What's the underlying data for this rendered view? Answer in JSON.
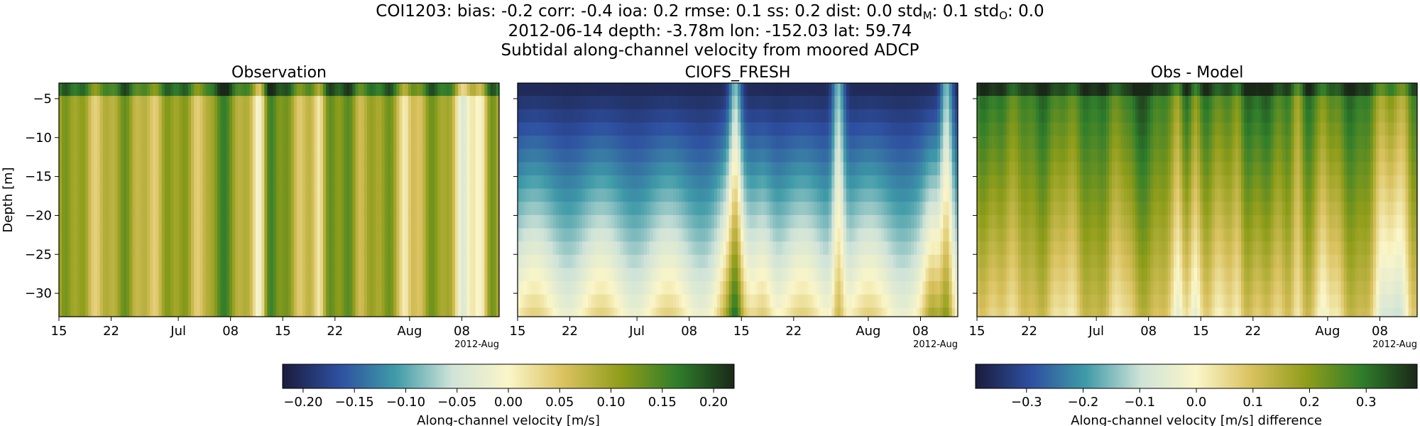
{
  "figure": {
    "title_lines": [
      {
        "parts": [
          {
            "t": "COI1203: bias: -0.2  corr: -0.4  ioa: 0.2  rmse: 0.1  ss: 0.2  dist: 0.0  std"
          },
          {
            "t": "M",
            "sub": true
          },
          {
            "t": ": 0.1  std"
          },
          {
            "t": "O",
            "sub": true
          },
          {
            "t": ": 0.0"
          }
        ]
      },
      {
        "parts": [
          {
            "t": "2012-06-14 depth: -3.78m lon: -152.03 lat: 59.74"
          }
        ]
      },
      {
        "parts": [
          {
            "t": "Subtidal along-channel velocity from moored ADCP"
          }
        ]
      }
    ],
    "colormap": "balance-like diverging (navy → teal → cream → olive → dark green)",
    "colormap_stops": [
      "#1a1c3c",
      "#2e4fa0",
      "#3f9ba8",
      "#cfe3d8",
      "#fbf6c8",
      "#d9c15e",
      "#8f9d1a",
      "#2f7d2b",
      "#1a2818"
    ]
  },
  "chart_data": [
    {
      "type": "heatmap",
      "title": "Observation",
      "ylabel": "Depth [m]",
      "xlabel": "",
      "x_range": [
        "2012-06-15",
        "2012-08-13"
      ],
      "ylim": [
        -33,
        -3
      ],
      "x_ticks": [
        {
          "date": "2012-06-15",
          "label": "15"
        },
        {
          "date": "2012-06-22",
          "label": "22"
        },
        {
          "date": "2012-07-01",
          "label": "Jul"
        },
        {
          "date": "2012-07-08",
          "label": "08"
        },
        {
          "date": "2012-07-15",
          "label": "15"
        },
        {
          "date": "2012-07-22",
          "label": "22"
        },
        {
          "date": "2012-08-01",
          "label": "Aug"
        },
        {
          "date": "2012-08-08",
          "label": "08"
        }
      ],
      "x_offset_label": "2012-Aug",
      "y_ticks": [
        -5,
        -10,
        -15,
        -20,
        -25,
        -30
      ],
      "clim": [
        -0.22,
        0.22
      ],
      "field": {
        "base": 0.08,
        "series": "obs",
        "note": "mostly positive, near-uniform in depth"
      }
    },
    {
      "type": "heatmap",
      "title": "CIOFS_FRESH",
      "ylabel": "",
      "xlabel": "",
      "x_range": [
        "2012-06-15",
        "2012-08-13"
      ],
      "ylim": [
        -33,
        -3
      ],
      "x_ticks": [
        {
          "date": "2012-06-15",
          "label": "15"
        },
        {
          "date": "2012-06-22",
          "label": "22"
        },
        {
          "date": "2012-07-01",
          "label": "Jul"
        },
        {
          "date": "2012-07-08",
          "label": "08"
        },
        {
          "date": "2012-07-15",
          "label": "15"
        },
        {
          "date": "2012-07-22",
          "label": "22"
        },
        {
          "date": "2012-08-01",
          "label": "Aug"
        },
        {
          "date": "2012-08-08",
          "label": "08"
        }
      ],
      "x_offset_label": "2012-Aug",
      "y_ticks": [
        -5,
        -10,
        -15,
        -20,
        -25,
        -30
      ],
      "clim": [
        -0.22,
        0.22
      ],
      "field": {
        "series": "model",
        "note": "strong negative near surface, near zero at depth"
      }
    },
    {
      "type": "heatmap",
      "title": "Obs - Model",
      "ylabel": "",
      "xlabel": "",
      "x_range": [
        "2012-06-15",
        "2012-08-13"
      ],
      "ylim": [
        -33,
        -3
      ],
      "x_ticks": [
        {
          "date": "2012-06-15",
          "label": "15"
        },
        {
          "date": "2012-06-22",
          "label": "22"
        },
        {
          "date": "2012-07-01",
          "label": "Jul"
        },
        {
          "date": "2012-07-08",
          "label": "08"
        },
        {
          "date": "2012-07-15",
          "label": "15"
        },
        {
          "date": "2012-07-22",
          "label": "22"
        },
        {
          "date": "2012-08-01",
          "label": "Aug"
        },
        {
          "date": "2012-08-08",
          "label": "08"
        }
      ],
      "x_offset_label": "2012-Aug",
      "y_ticks": [
        -5,
        -10,
        -15,
        -20,
        -25,
        -30
      ],
      "clim": [
        -0.39,
        0.39
      ],
      "field": {
        "series": "diff",
        "note": "positive, largest near surface"
      }
    }
  ],
  "colorbars": [
    {
      "label": "Along-channel velocity [m/s]",
      "vmin": -0.22,
      "vmax": 0.22,
      "ticks": [
        -0.2,
        -0.15,
        -0.1,
        -0.05,
        0.0,
        0.05,
        0.1,
        0.15,
        0.2
      ],
      "tick_labels": [
        "−0.20",
        "−0.15",
        "−0.10",
        "−0.05",
        "0.00",
        "0.05",
        "0.10",
        "0.15",
        "0.20"
      ]
    },
    {
      "label": "Along-channel velocity [m/s] difference",
      "vmin": -0.39,
      "vmax": 0.39,
      "ticks": [
        -0.3,
        -0.2,
        -0.1,
        0.0,
        0.1,
        0.2,
        0.3
      ],
      "tick_labels": [
        "−0.3",
        "−0.2",
        "−0.1",
        "0.0",
        "0.1",
        "0.2",
        "0.3"
      ]
    }
  ]
}
